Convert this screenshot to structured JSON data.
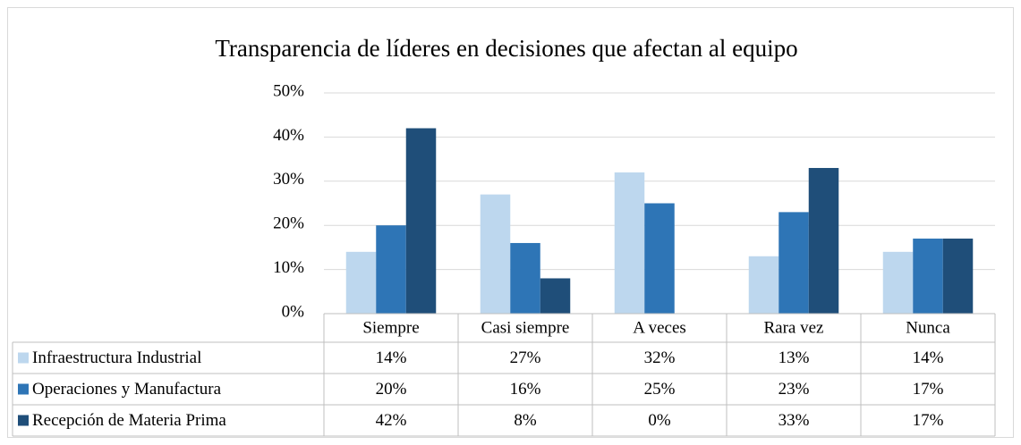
{
  "chart_data": {
    "type": "bar",
    "title": "Transparencia de líderes en decisiones que afectan al equipo",
    "categories": [
      "Siempre",
      "Casi siempre",
      "A veces",
      "Rara vez",
      "Nunca"
    ],
    "series": [
      {
        "name": "Infraestructura Industrial",
        "color": "#bdd7ee",
        "values": [
          14,
          27,
          32,
          13,
          14
        ],
        "value_labels": [
          "14%",
          "27%",
          "32%",
          "13%",
          "14%"
        ]
      },
      {
        "name": "Operaciones y Manufactura",
        "color": "#2e75b6",
        "values": [
          20,
          16,
          25,
          23,
          17
        ],
        "value_labels": [
          "20%",
          "16%",
          "25%",
          "23%",
          "17%"
        ]
      },
      {
        "name": "Recepción de Materia Prima",
        "color": "#1f4e79",
        "values": [
          42,
          8,
          0,
          33,
          17
        ],
        "value_labels": [
          "42%",
          "8%",
          "0%",
          "33%",
          "17%"
        ]
      }
    ],
    "ylim": [
      0,
      50
    ],
    "yticks": [
      {
        "value": 0,
        "label": "0%"
      },
      {
        "value": 10,
        "label": "10%"
      },
      {
        "value": 20,
        "label": "20%"
      },
      {
        "value": 30,
        "label": "30%"
      },
      {
        "value": 40,
        "label": "40%"
      },
      {
        "value": 50,
        "label": "50%"
      }
    ],
    "grid": true
  }
}
